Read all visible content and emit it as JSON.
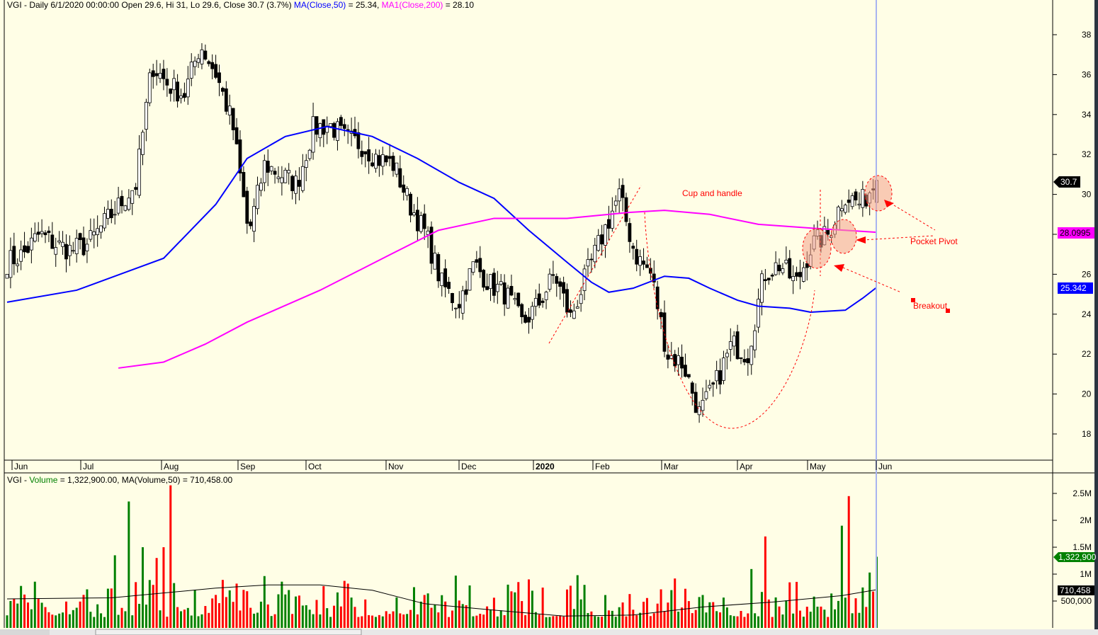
{
  "header": {
    "symbol": "VGI",
    "info": "VGI - Daily 6/1/2020 00:00:00 Open 29.6, Hi 31, Lo 29.6, Close 30.7 (3.7%)",
    "ma50_label": "MA(Close,50)",
    "ma50_value": " = 25.34, ",
    "ma200_label": "MA1(Close,200)",
    "ma200_value": " = 28.10"
  },
  "volume_header": {
    "prefix": "VGI - ",
    "label": "Volume",
    "value": " = 1,322,900.00, MA(Volume,50) = 710,458.00"
  },
  "colors": {
    "background": "#fffee6",
    "ma50": "#0000ff",
    "ma200": "#ff00ff",
    "up_volume": "#008000",
    "down_volume": "#ff0000",
    "annotation": "#ff0000"
  },
  "annotations": {
    "cup": "Cup and handle",
    "pocket_pivot": "Pocket Pivot",
    "breakout": "Breakout"
  },
  "price_badges": {
    "close": "30.7",
    "ma200": "28.0995",
    "ma50": "25.342"
  },
  "volume_badges": {
    "volume": "1,322,900",
    "ma": "710,458"
  },
  "chart_data": [
    {
      "type": "candlestick",
      "title": "VGI - Daily",
      "x_months": [
        "Jun",
        "Jul",
        "Aug",
        "Sep",
        "Oct",
        "Nov",
        "Dec",
        "2020",
        "Feb",
        "Mar",
        "Apr",
        "May",
        "Jun"
      ],
      "y_ticks": [
        "38",
        "36",
        "34",
        "32",
        "30",
        "28",
        "26",
        "24",
        "22",
        "20",
        "18"
      ],
      "ylim": [
        16.8,
        39.8
      ],
      "bars": 251,
      "weekly_closes": [
        26.6,
        27.0,
        28.0,
        27.5,
        27.2,
        27.5,
        28.5,
        29.5,
        30.5,
        36.5,
        35.5,
        35.0,
        37.5,
        36.0,
        33.5,
        28.0,
        31.5,
        31.0,
        30.5,
        33.3,
        33.5,
        32.8,
        32.5,
        31.8,
        31.5,
        29.5,
        28.0,
        25.5,
        24.5,
        26.5,
        25.5,
        25.0,
        23.5,
        24.5,
        26.0,
        23.8,
        26.0,
        28.0,
        30.0,
        27.0,
        26.0,
        22.0,
        21.5,
        19.0,
        20.5,
        22.5,
        22.0,
        26.0,
        26.5,
        25.5,
        27.5,
        28.0,
        30.0,
        29.5,
        30.7
      ],
      "last_bar": {
        "date": "6/1/2020",
        "open": 29.6,
        "high": 31,
        "low": 29.6,
        "close": 30.7
      },
      "series": [
        {
          "name": "MA(Close,50)",
          "points": [
            [
              0,
              24.6
            ],
            [
              20,
              25.2
            ],
            [
              45,
              26.8
            ],
            [
              60,
              29.5
            ],
            [
              69,
              31.8
            ],
            [
              80,
              32.9
            ],
            [
              92,
              33.4
            ],
            [
              105,
              32.9
            ],
            [
              118,
              31.8
            ],
            [
              130,
              30.6
            ],
            [
              140,
              29.8
            ],
            [
              150,
              28.2
            ],
            [
              161,
              26.6
            ],
            [
              168,
              25.6
            ],
            [
              173,
              25.1
            ],
            [
              180,
              25.3
            ],
            [
              189,
              25.9
            ],
            [
              196,
              25.8
            ],
            [
              202,
              25.3
            ],
            [
              210,
              24.7
            ],
            [
              216,
              24.4
            ],
            [
              225,
              24.3
            ],
            [
              231,
              24.1
            ],
            [
              241,
              24.2
            ],
            [
              246,
              24.8
            ],
            [
              250,
              25.34
            ]
          ]
        },
        {
          "name": "MA1(Close,200)",
          "points": [
            [
              32,
              21.3
            ],
            [
              45,
              21.6
            ],
            [
              57,
              22.5
            ],
            [
              69,
              23.6
            ],
            [
              90,
              25.2
            ],
            [
              110,
              26.97
            ],
            [
              124,
              28.2
            ],
            [
              140,
              28.8
            ],
            [
              161,
              28.8
            ],
            [
              179,
              29.1
            ],
            [
              189,
              29.2
            ],
            [
              202,
              29.0
            ],
            [
              216,
              28.5
            ],
            [
              232,
              28.3
            ],
            [
              250,
              28.1
            ]
          ]
        }
      ]
    },
    {
      "type": "bar",
      "title": "Volume",
      "y_ticks": [
        "2.5M",
        "2M",
        "1.5M",
        "1M",
        "500,000"
      ],
      "ylim": [
        0,
        2850000
      ],
      "spikes": [
        [
          31,
          1350000
        ],
        [
          35,
          2350000
        ],
        [
          39,
          1500000
        ],
        [
          43,
          1300000
        ],
        [
          45,
          1500000
        ],
        [
          47,
          2650000
        ],
        [
          218,
          1700000
        ],
        [
          240,
          1900000
        ],
        [
          242,
          2450000
        ],
        [
          250,
          1322900
        ]
      ],
      "ma_points": [
        [
          0,
          540000
        ],
        [
          30,
          560000
        ],
        [
          60,
          740000
        ],
        [
          75,
          800000
        ],
        [
          90,
          800000
        ],
        [
          105,
          700000
        ],
        [
          120,
          450000
        ],
        [
          140,
          330000
        ],
        [
          160,
          220000
        ],
        [
          180,
          240000
        ],
        [
          200,
          390000
        ],
        [
          220,
          480000
        ],
        [
          240,
          600000
        ],
        [
          250,
          710458
        ]
      ]
    }
  ]
}
